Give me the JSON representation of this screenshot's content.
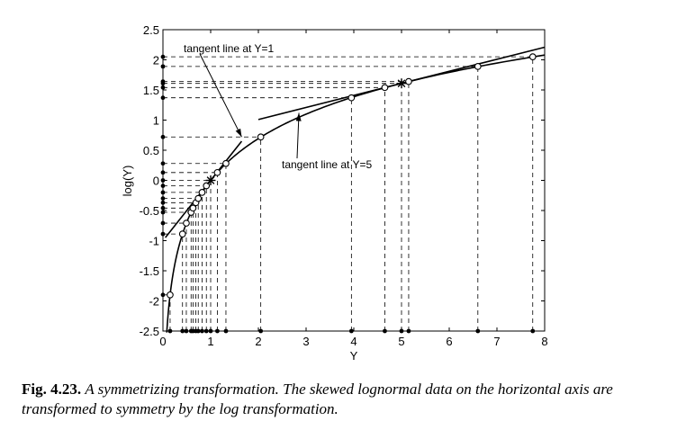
{
  "chart_data": {
    "type": "scatter",
    "xlabel": "Y",
    "ylabel": "log(Y)",
    "xlim": [
      0,
      8
    ],
    "ylim": [
      -2.5,
      2.5
    ],
    "xticks": [
      "0",
      "1",
      "2",
      "3",
      "4",
      "5",
      "6",
      "7",
      "8"
    ],
    "yticks": [
      "2.5",
      "2",
      "1.5",
      "1",
      "0.5",
      "0",
      "-0.5",
      "-1",
      "-1.5",
      "-2",
      "-2.5"
    ],
    "grid": false,
    "curve": {
      "function": "log(Y)",
      "x_range": [
        0.08,
        8
      ]
    },
    "data_points": [
      {
        "x": 0.15,
        "y": -1.9
      },
      {
        "x": 0.41,
        "y": -0.89
      },
      {
        "x": 0.49,
        "y": -0.71
      },
      {
        "x": 0.59,
        "y": -0.53
      },
      {
        "x": 0.63,
        "y": -0.46
      },
      {
        "x": 0.69,
        "y": -0.37
      },
      {
        "x": 0.74,
        "y": -0.3
      },
      {
        "x": 0.82,
        "y": -0.2
      },
      {
        "x": 0.91,
        "y": -0.09
      },
      {
        "x": 1.14,
        "y": 0.13
      },
      {
        "x": 1.32,
        "y": 0.28
      },
      {
        "x": 2.05,
        "y": 0.72
      },
      {
        "x": 3.95,
        "y": 1.37
      },
      {
        "x": 4.65,
        "y": 1.54
      },
      {
        "x": 5.15,
        "y": 1.64
      },
      {
        "x": 6.6,
        "y": 1.89
      },
      {
        "x": 7.75,
        "y": 2.05
      }
    ],
    "star_points": [
      {
        "x": 1,
        "y": 0
      },
      {
        "x": 5,
        "y": 1.609
      }
    ],
    "tangent_lines": [
      {
        "label": "tangent line at Y=1",
        "at": 1,
        "x_range": [
          0.05,
          1.65
        ]
      },
      {
        "label": "tangent line at Y=5",
        "at": 5,
        "x_range": [
          2.0,
          8.0
        ]
      }
    ],
    "annotations": [
      {
        "text": "tangent line at Y=1",
        "arrow_to": {
          "x": 1.65,
          "y": 0.72
        }
      },
      {
        "text": "tangent line at Y=5",
        "arrow_to": {
          "x": 2.85,
          "y": 1.12
        }
      }
    ]
  },
  "caption": {
    "figure_number": "Fig. 4.23.",
    "text": "A symmetrizing transformation. The skewed lognormal data on the horizontal axis are transformed to symmetry by the log transformation."
  }
}
